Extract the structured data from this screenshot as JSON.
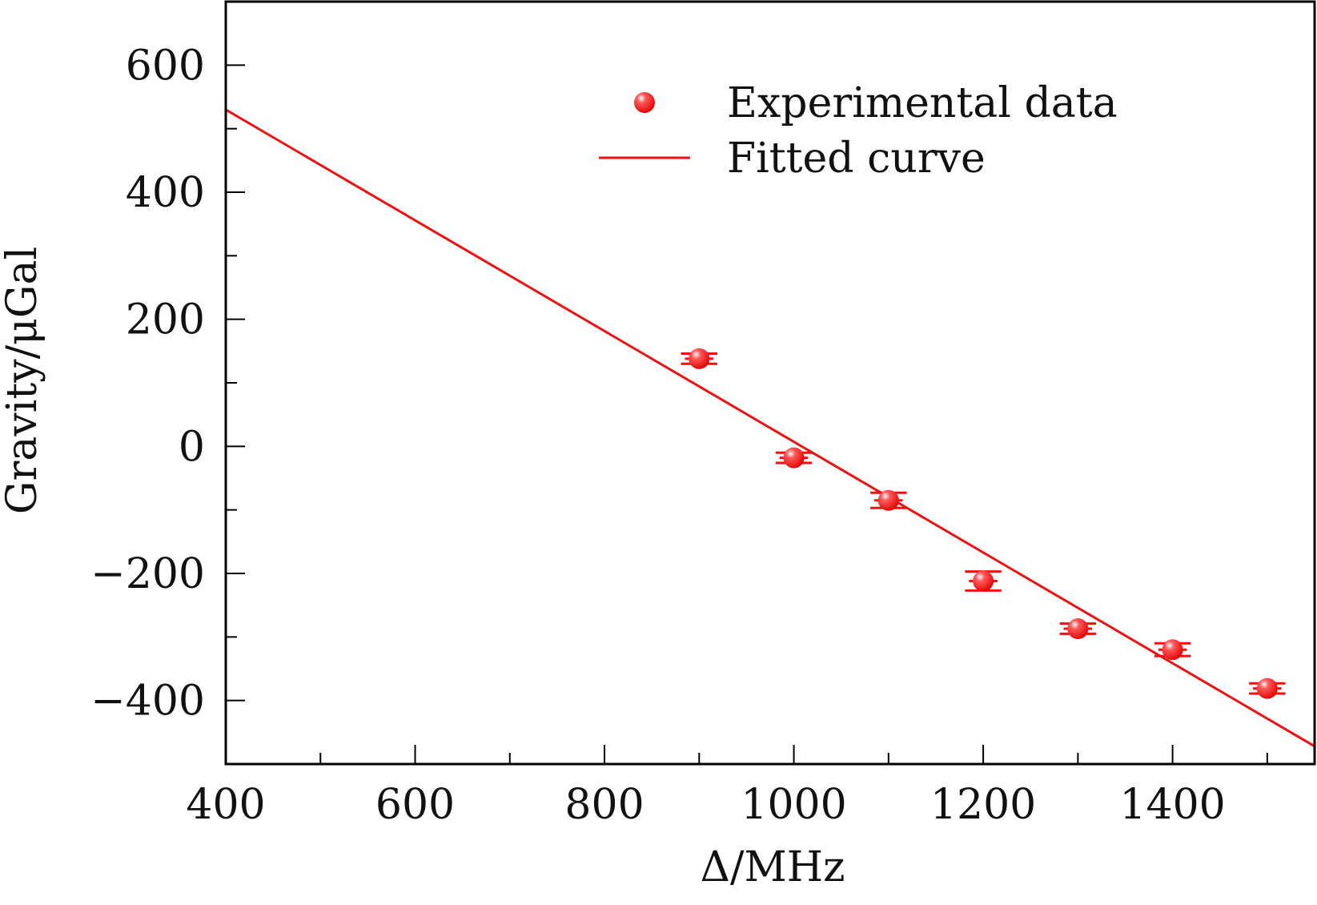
{
  "colors": {
    "series": "#ee1111",
    "axis": "#000000",
    "text": "#111111"
  },
  "chart_data": {
    "type": "scatter",
    "title": "",
    "xlabel": "Δ/MHz",
    "ylabel": "Gravity/μGal",
    "xlim": [
      400,
      1550
    ],
    "ylim": [
      -500,
      700
    ],
    "xticks": [
      400,
      600,
      800,
      1000,
      1200,
      1400
    ],
    "xtick_labels": [
      "400",
      "600",
      "800",
      "1000",
      "1200",
      "1400"
    ],
    "yticks": [
      -400,
      -200,
      0,
      200,
      400,
      600
    ],
    "ytick_labels": [
      "−400",
      "−200",
      "0",
      "200",
      "400",
      "600"
    ],
    "grid": false,
    "legend_position": "top-right",
    "series": [
      {
        "name": "Experimental data",
        "kind": "scatter",
        "x": [
          900,
          1000,
          1100,
          1200,
          1300,
          1400,
          1500
        ],
        "y": [
          138,
          -18,
          -85,
          -212,
          -287,
          -320,
          -381
        ],
        "yerr": [
          8,
          8,
          12,
          15,
          8,
          10,
          8
        ],
        "xerr": [
          15,
          15,
          15,
          15,
          15,
          15,
          15
        ]
      },
      {
        "name": "Fitted curve",
        "kind": "line",
        "x": [
          400,
          1550
        ],
        "y": [
          530,
          -472
        ]
      }
    ]
  }
}
